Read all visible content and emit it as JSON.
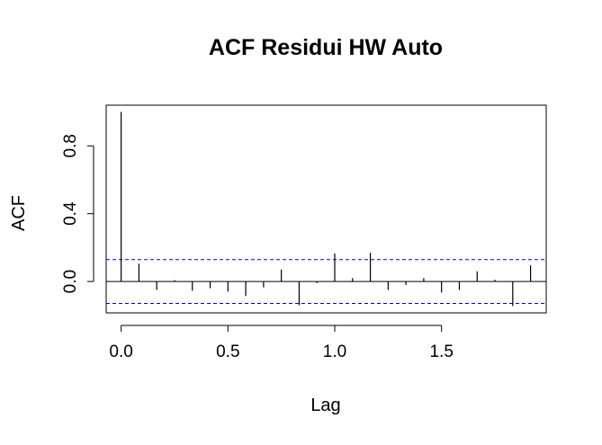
{
  "chart_data": {
    "type": "bar",
    "title": "ACF Residui HW Auto",
    "xlabel": "Lag",
    "ylabel": "ACF",
    "xlim": [
      -0.07,
      1.99
    ],
    "ylim": [
      -0.185,
      1.04
    ],
    "x_ticks": [
      0.0,
      0.5,
      1.0,
      1.5
    ],
    "x_tick_labels": [
      "0.0",
      "0.5",
      "1.0",
      "1.5"
    ],
    "y_ticks": [
      0.0,
      0.4,
      0.8
    ],
    "y_tick_labels": [
      "0.0",
      "0.4",
      "0.8"
    ],
    "confidence_bound": 0.129,
    "colors": {
      "bars": "#000000",
      "confidence_lines": "#0000cc",
      "frame": "#000000"
    },
    "lags": [
      0.0,
      0.0833,
      0.1667,
      0.25,
      0.3333,
      0.4167,
      0.5,
      0.5833,
      0.6667,
      0.75,
      0.8333,
      0.9167,
      1.0,
      1.0833,
      1.1667,
      1.25,
      1.3333,
      1.4167,
      1.5,
      1.5833,
      1.6667,
      1.75,
      1.8333,
      1.9167
    ],
    "values": [
      1.0,
      0.105,
      -0.05,
      0.008,
      -0.055,
      -0.04,
      -0.06,
      -0.085,
      -0.035,
      0.07,
      -0.14,
      -0.01,
      0.165,
      0.02,
      0.17,
      -0.05,
      -0.02,
      0.02,
      -0.065,
      -0.05,
      0.06,
      0.01,
      -0.145,
      0.095
    ]
  }
}
